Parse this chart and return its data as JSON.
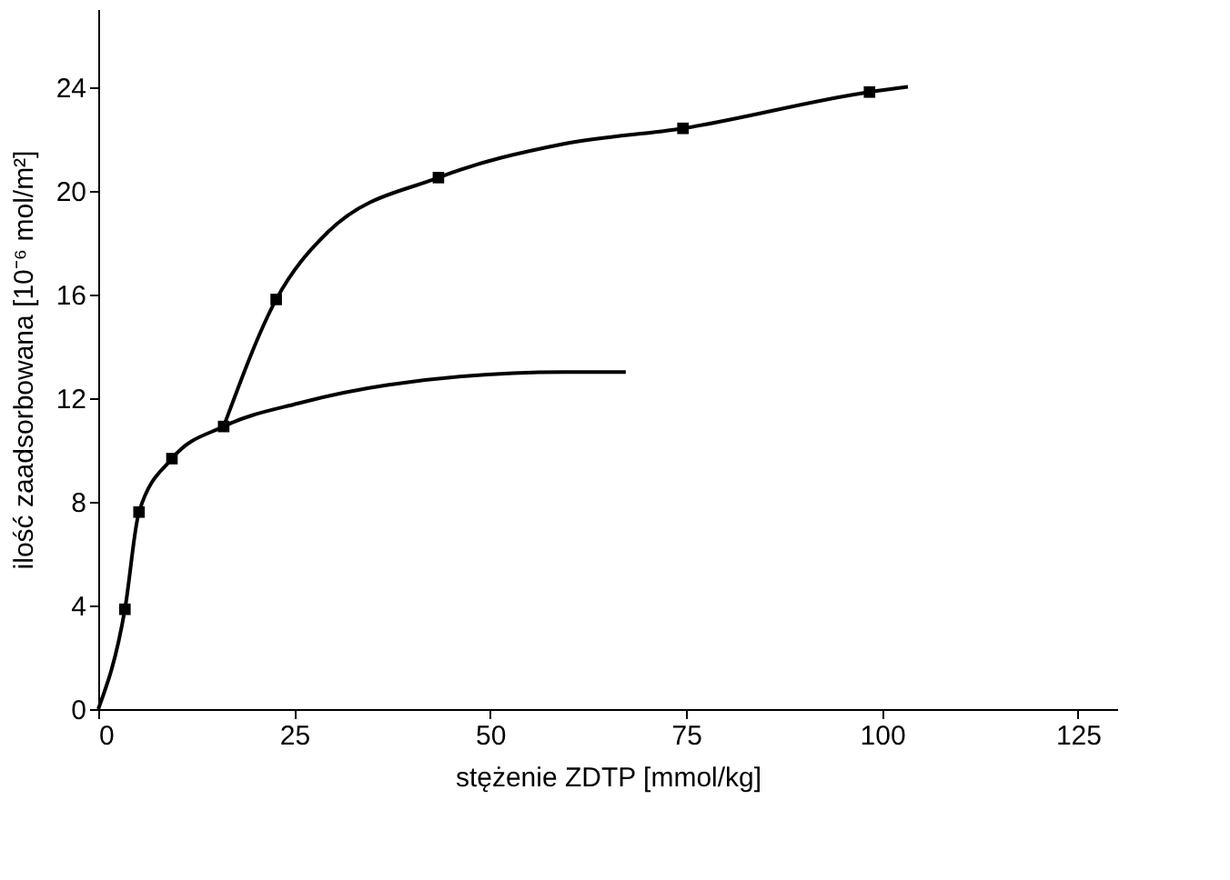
{
  "chart_data": {
    "type": "line",
    "xlabel": "stężenie ZDTP [mmol/kg]",
    "ylabel": "ilość zaadsorbowana [10⁻⁶ mol/m²]",
    "xlim": [
      0,
      130
    ],
    "ylim": [
      0,
      27
    ],
    "xticks": [
      0,
      25,
      50,
      75,
      100,
      125
    ],
    "yticks": [
      0,
      4,
      8,
      12,
      16,
      20,
      24
    ],
    "grid": false,
    "series": [
      {
        "color": "#000000",
        "marker": "none",
        "line_style": "solid",
        "x": [
          0,
          3.4,
          5.2,
          9.4,
          16,
          25.6,
          36.9,
          59.4,
          67.3
        ],
        "values": [
          0,
          3.85,
          7.6,
          9.66,
          10.9,
          11.8,
          12.5,
          13.0,
          13.0
        ]
      },
      {
        "color": "#000000",
        "marker": "none",
        "line_style": "solid",
        "x": [
          16,
          22.7,
          29.3,
          43.4,
          59.4,
          74.6,
          98.4,
          103.3
        ],
        "values": [
          10.9,
          15.8,
          18.4,
          20.5,
          21.8,
          22.4,
          23.8,
          24.0
        ]
      },
      {
        "type": "scatter",
        "color": "#000000",
        "marker": "square",
        "x": [
          3.4,
          5.2,
          9.4,
          16,
          22.7,
          43.4,
          74.6,
          98.4
        ],
        "values": [
          3.85,
          7.6,
          9.66,
          10.9,
          15.8,
          20.5,
          22.4,
          23.8
        ]
      }
    ]
  }
}
